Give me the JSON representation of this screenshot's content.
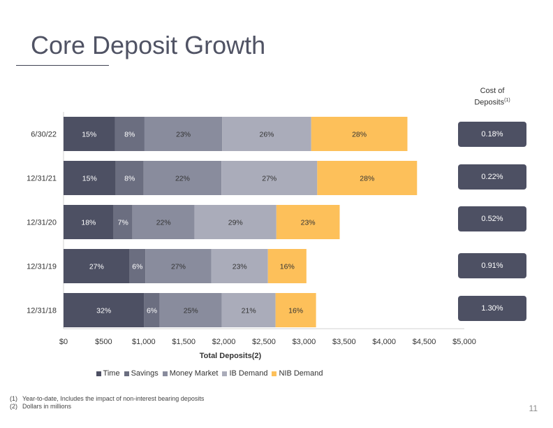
{
  "title": "Core Deposit Growth",
  "page_number": "11",
  "cost_of_deposits": {
    "header": "Cost of Deposits",
    "header_line1": "Cost of",
    "header_line2": "Deposits",
    "header_sup": "(1)",
    "values": [
      "0.18%",
      "0.22%",
      "0.52%",
      "0.91%",
      "1.30%"
    ]
  },
  "footnotes": [
    {
      "num": "(1)",
      "text": "Year-to-date, Includes the impact of non-interest bearing deposits"
    },
    {
      "num": "(2)",
      "text": "Dollars in millions"
    }
  ],
  "colors": {
    "Time": "#4d5063",
    "Savings": "#6b6e80",
    "Money Market": "#898c9d",
    "IB Demand": "#aaacba",
    "NIB Demand": "#fdc05a"
  },
  "chart_data": {
    "type": "bar",
    "orientation": "horizontal",
    "stacked": true,
    "categories": [
      "6/30/22",
      "12/31/21",
      "12/31/20",
      "12/31/19",
      "12/31/18"
    ],
    "series": [
      {
        "name": "Time",
        "values": [
          640,
          650,
          625,
          825,
          1005
        ],
        "labels": [
          "15%",
          "15%",
          "18%",
          "27%",
          "32%"
        ]
      },
      {
        "name": "Savings",
        "values": [
          370,
          350,
          235,
          195,
          195
        ],
        "labels": [
          "8%",
          "8%",
          "7%",
          "6%",
          "6%"
        ]
      },
      {
        "name": "Money Market",
        "values": [
          970,
          970,
          775,
          825,
          775
        ],
        "labels": [
          "23%",
          "22%",
          "22%",
          "27%",
          "25%"
        ]
      },
      {
        "name": "IB Demand",
        "values": [
          1110,
          1195,
          1020,
          705,
          670
        ],
        "labels": [
          "26%",
          "27%",
          "29%",
          "23%",
          "21%"
        ]
      },
      {
        "name": "NIB Demand",
        "values": [
          1200,
          1245,
          790,
          480,
          505
        ],
        "labels": [
          "28%",
          "28%",
          "23%",
          "16%",
          "16%"
        ]
      }
    ],
    "xlabel": "Total Deposits(2)",
    "xlim": [
      0,
      5000
    ],
    "xticks": [
      "$0",
      "$500",
      "$1,000",
      "$1,500",
      "$2,000",
      "$2,500",
      "$3,000",
      "$3,500",
      "$4,000",
      "$4,500",
      "$5,000"
    ],
    "xtick_values": [
      0,
      500,
      1000,
      1500,
      2000,
      2500,
      3000,
      3500,
      4000,
      4500,
      5000
    ],
    "legend_position": "bottom",
    "grid": false
  }
}
